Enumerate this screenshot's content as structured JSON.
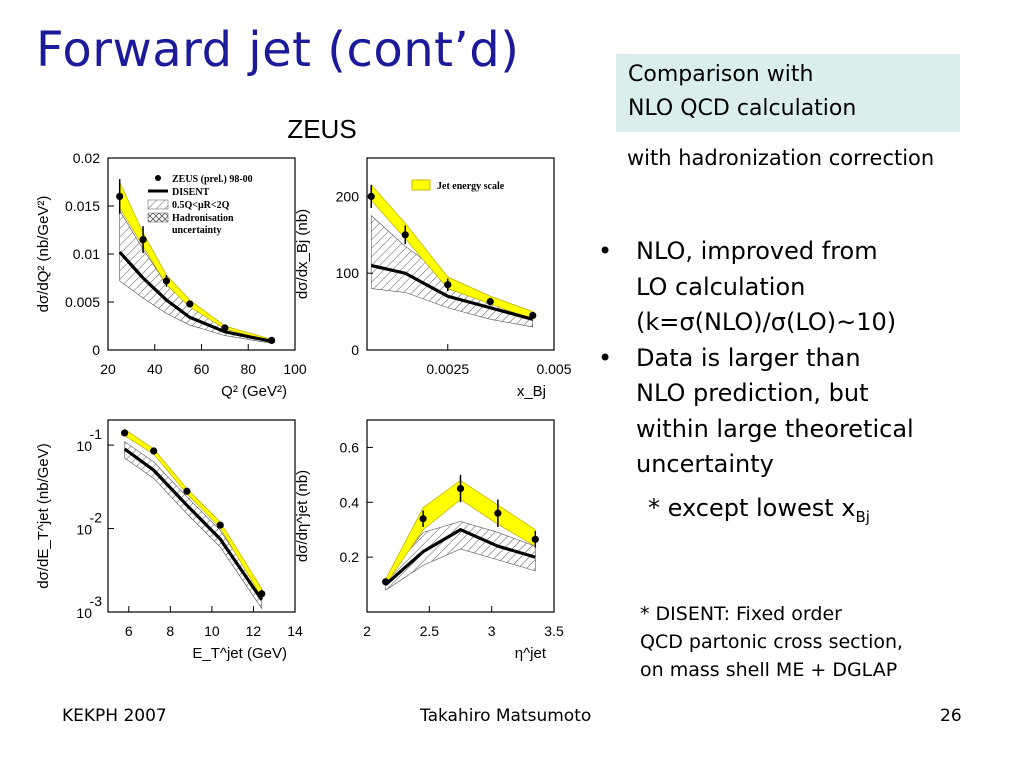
{
  "title": "Forward jet (cont’d)",
  "comparison_box": {
    "line1": "Comparison with",
    "line2": "NLO QCD calculation"
  },
  "subtitle": "with hadronization correction",
  "bullets": [
    {
      "lines": [
        "NLO, improved from",
        "LO calculation",
        "(k=σ(NLO)/σ(LO)~10)"
      ]
    },
    {
      "lines": [
        "Data is larger than",
        "NLO prediction, but",
        "within large theoretical",
        "uncertainty"
      ]
    }
  ],
  "exception": {
    "text": "* except lowest x",
    "sub": "Bj"
  },
  "note": {
    "lines": [
      "* DISENT: Fixed order",
      "QCD partonic cross section,",
      "on mass shell ME + DGLAP"
    ]
  },
  "footer": {
    "left": "KEKPH 2007",
    "center": "Takahiro Matsumoto",
    "right": "26"
  },
  "figure_title": "ZEUS",
  "colors": {
    "title": "#1a1a9a",
    "box": "#dbeeee",
    "band": "#ffff00",
    "band_edge": "#c8b400"
  },
  "chart_data": [
    {
      "type": "line",
      "xlabel": "Q² (GeV²)",
      "ylabel": "dσ/dQ² (nb/GeV²)",
      "xlim": [
        20,
        100
      ],
      "ylim": [
        0,
        0.02
      ],
      "x_ticks": [
        "20",
        "40",
        "60",
        "80",
        "100"
      ],
      "y_ticks": [
        "0",
        "0.005",
        "0.01",
        "0.015",
        "0.02"
      ],
      "x": [
        25,
        35,
        45,
        55,
        70,
        90
      ],
      "data": [
        0.016,
        0.0115,
        0.0072,
        0.0048,
        0.0023,
        0.001
      ],
      "data_err": [
        0.0018,
        0.0014,
        0.0006,
        0.0003,
        0.0002,
        0.0001
      ],
      "nlo": [
        0.0102,
        0.0075,
        0.0052,
        0.0034,
        0.0019,
        0.0009
      ],
      "nlo_hi": [
        0.0145,
        0.0105,
        0.0068,
        0.0046,
        0.0024,
        0.0011
      ],
      "nlo_lo": [
        0.0072,
        0.0054,
        0.0038,
        0.0026,
        0.0015,
        0.0007
      ],
      "jes_hi": [
        0.0175,
        0.0122,
        0.0078,
        0.0052,
        0.0025,
        0.0011
      ],
      "jes_lo": [
        0.0148,
        0.0108,
        0.0068,
        0.0045,
        0.0022,
        0.0009
      ],
      "legend": [
        "ZEUS (prel.) 98-00",
        "DISENT",
        "0.5Q<μR<2Q",
        "Hadronisation",
        "uncertainty"
      ]
    },
    {
      "type": "line",
      "xlabel": "x_Bj",
      "ylabel": "dσ/dx_Bj (nb)",
      "xlim": [
        0.0006,
        0.005
      ],
      "ylim": [
        0,
        250
      ],
      "x_ticks": [
        "0.0025",
        "0.005"
      ],
      "y_ticks": [
        "0",
        "100",
        "200"
      ],
      "x": [
        0.0007,
        0.0015,
        0.0025,
        0.0035,
        0.0045
      ],
      "data": [
        200,
        150,
        85,
        63,
        45
      ],
      "data_err": [
        15,
        12,
        8,
        5,
        4
      ],
      "nlo": [
        110,
        100,
        70,
        55,
        40
      ],
      "nlo_hi": [
        175,
        135,
        95,
        70,
        50
      ],
      "nlo_lo": [
        80,
        75,
        55,
        40,
        30
      ],
      "jes_hi": [
        215,
        165,
        95,
        70,
        50
      ],
      "jes_lo": [
        195,
        145,
        80,
        60,
        40
      ],
      "legend": [
        "Jet energy scale"
      ]
    },
    {
      "type": "line",
      "log_y": true,
      "xlabel": "E_T^jet (GeV)",
      "ylabel": "dσ/dE_T^jet (nb/GeV)",
      "xlim": [
        5,
        14
      ],
      "ylim": [
        0.001,
        0.2
      ],
      "x_ticks": [
        "6",
        "8",
        "10",
        "12",
        "14"
      ],
      "y_ticks": [
        "10^-1",
        "10^-2",
        "10^-3"
      ],
      "x": [
        5.8,
        7.2,
        8.8,
        10.4,
        12.4
      ],
      "data": [
        0.14,
        0.085,
        0.028,
        0.011,
        0.00165
      ],
      "data_err": [
        0.005,
        0.003,
        0.001,
        0.0005,
        0.0002
      ],
      "nlo": [
        0.09,
        0.05,
        0.019,
        0.0075,
        0.0014
      ],
      "nlo_hi": [
        0.11,
        0.063,
        0.024,
        0.0095,
        0.0017
      ],
      "nlo_lo": [
        0.07,
        0.04,
        0.015,
        0.006,
        0.0011
      ],
      "jes_hi": [
        0.155,
        0.09,
        0.03,
        0.012,
        0.0019
      ],
      "jes_lo": [
        0.13,
        0.078,
        0.026,
        0.0102,
        0.0015
      ]
    },
    {
      "type": "line",
      "xlabel": "η^jet",
      "ylabel": "dσ/dη^jet (nb)",
      "xlim": [
        2,
        3.5
      ],
      "ylim": [
        0,
        0.7
      ],
      "x_ticks": [
        "2",
        "2.5",
        "3",
        "3.5"
      ],
      "y_ticks": [
        "0.2",
        "0.4",
        "0.6"
      ],
      "x": [
        2.15,
        2.45,
        2.75,
        3.05,
        3.35
      ],
      "data": [
        0.11,
        0.34,
        0.45,
        0.36,
        0.265
      ],
      "data_err": [
        0.01,
        0.03,
        0.05,
        0.05,
        0.03
      ],
      "nlo": [
        0.1,
        0.22,
        0.3,
        0.24,
        0.2
      ],
      "nlo_hi": [
        0.12,
        0.29,
        0.33,
        0.29,
        0.24
      ],
      "nlo_lo": [
        0.08,
        0.17,
        0.23,
        0.19,
        0.15
      ],
      "jes_hi": [
        0.12,
        0.38,
        0.48,
        0.39,
        0.3
      ],
      "jes_lo": [
        0.1,
        0.3,
        0.41,
        0.32,
        0.24
      ]
    }
  ]
}
